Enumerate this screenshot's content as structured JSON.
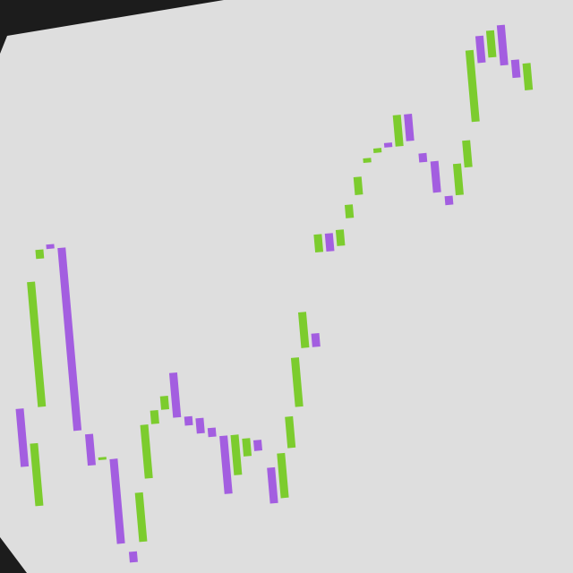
{
  "chart_data": {
    "type": "candlestick",
    "open": [
      210,
      100,
      210,
      375,
      390,
      385,
      175,
      145,
      145,
      40,
      50,
      120,
      180,
      195,
      235,
      185,
      182,
      170,
      160,
      115,
      135,
      152,
      120,
      85,
      140,
      185,
      250,
      265,
      355,
      375,
      360,
      390,
      415,
      450,
      460,
      470,
      465,
      500,
      455,
      445,
      405,
      405,
      435,
      485,
      580,
      555,
      590,
      550,
      515
    ],
    "close": [
      145,
      170,
      350,
      385,
      385,
      180,
      140,
      148,
      50,
      28,
      105,
      180,
      195,
      210,
      185,
      175,
      165,
      160,
      95,
      160,
      155,
      140,
      80,
      135,
      175,
      240,
      290,
      250,
      375,
      355,
      378,
      405,
      435,
      455,
      465,
      465,
      500,
      470,
      445,
      410,
      395,
      440,
      465,
      565,
      550,
      585,
      545,
      530,
      545
    ],
    "up_color": "#7ccc2e",
    "down_color": "#a35ee0",
    "ylim": [
      0,
      640
    ]
  }
}
